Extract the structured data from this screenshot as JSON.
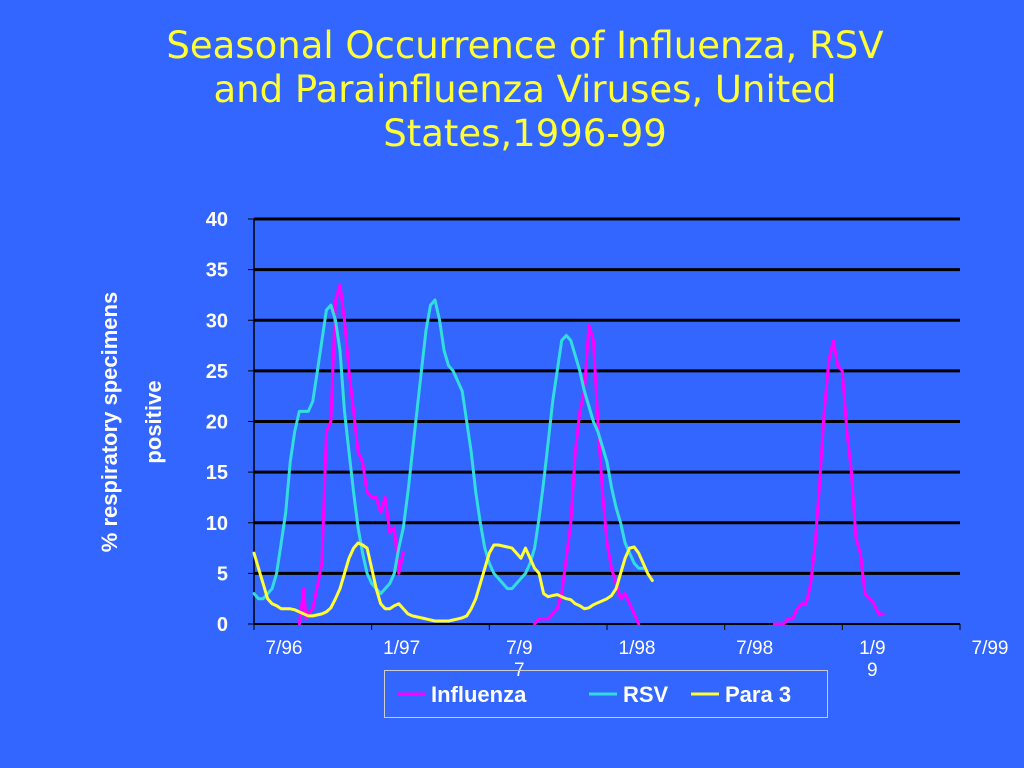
{
  "title_lines": [
    "Seasonal Occurrence of Influenza,  RSV",
    "and Parainfluenza Viruses, United",
    "States,1996-99"
  ],
  "chart_data": {
    "type": "line",
    "title": "Seasonal Occurrence of Influenza,  RSV and Parainfluenza Viruses, United States,1996-99",
    "ylabel_lines": [
      "% respiratory specimens",
      "positive"
    ],
    "xlabel": "",
    "ylim": [
      0,
      40
    ],
    "y_ticks": [
      "0",
      "5",
      "10",
      "15",
      "20",
      "25",
      "30",
      "35",
      "40"
    ],
    "x_tick_labels": [
      {
        "lines": [
          "7/96"
        ],
        "week": 0
      },
      {
        "lines": [
          "1/97"
        ],
        "week": 26
      },
      {
        "lines": [
          "7/9",
          "7"
        ],
        "week": 52
      },
      {
        "lines": [
          "1/98"
        ],
        "week": 78
      },
      {
        "lines": [
          "7/98"
        ],
        "week": 104
      },
      {
        "lines": [
          "1/9",
          "9"
        ],
        "week": 130
      },
      {
        "lines": [
          "7/99"
        ],
        "week": 156
      }
    ],
    "x_unit": "weeks from 7/96",
    "grid": true,
    "legend_position": "bottom",
    "colors": {
      "Influenza": "#ff00ff",
      "RSV": "#33dddd",
      "Para 3": "#ffff33",
      "background": "#3366ff",
      "title": "#ffff33"
    },
    "series": [
      {
        "name": "Influenza",
        "color": "#ff00ff",
        "points": [
          [
            10,
            0
          ],
          [
            11,
            3.5
          ],
          [
            11.5,
            0.5
          ],
          [
            12,
            1
          ],
          [
            13,
            1.5
          ],
          [
            15,
            6
          ],
          [
            16,
            19
          ],
          [
            17,
            20
          ],
          [
            18,
            32
          ],
          [
            19,
            33.5
          ],
          [
            20,
            30
          ],
          [
            21,
            25
          ],
          [
            22,
            21
          ],
          [
            23,
            17
          ],
          [
            24,
            16
          ],
          [
            25,
            13
          ],
          [
            26,
            12.5
          ],
          [
            27,
            12.5
          ],
          [
            28,
            11
          ],
          [
            29,
            12.5
          ],
          [
            30,
            9
          ],
          [
            31,
            9.5
          ],
          [
            32,
            5
          ],
          [
            33,
            7
          ]
        ]
      },
      {
        "name": "Influenza",
        "color": "#ff00ff",
        "points": [
          [
            62,
            0
          ],
          [
            63,
            0.5
          ],
          [
            65,
            0.5
          ],
          [
            67,
            1.5
          ],
          [
            68,
            3
          ],
          [
            70,
            10
          ],
          [
            71,
            17
          ],
          [
            72,
            21
          ],
          [
            73,
            23
          ],
          [
            74,
            29.5
          ],
          [
            75,
            28
          ],
          [
            76,
            20
          ],
          [
            77,
            13
          ],
          [
            78,
            8
          ],
          [
            79,
            5.5
          ],
          [
            80,
            4
          ],
          [
            81,
            2.5
          ],
          [
            82,
            3
          ],
          [
            83,
            2
          ],
          [
            84,
            1
          ],
          [
            85,
            0
          ]
        ]
      },
      {
        "name": "Influenza",
        "color": "#ff00ff",
        "points": [
          [
            115,
            0
          ],
          [
            117,
            0
          ],
          [
            118,
            0.5
          ],
          [
            119,
            0.5
          ],
          [
            120,
            1.5
          ],
          [
            121,
            2
          ],
          [
            122,
            2
          ],
          [
            123,
            4
          ],
          [
            124,
            8
          ],
          [
            125,
            14
          ],
          [
            126,
            21
          ],
          [
            127,
            26
          ],
          [
            128,
            28
          ],
          [
            129,
            25.5
          ],
          [
            130,
            25
          ],
          [
            131,
            19
          ],
          [
            132,
            15
          ],
          [
            133,
            8.5
          ],
          [
            134,
            7
          ],
          [
            135,
            3
          ],
          [
            136,
            2.5
          ],
          [
            137,
            2
          ],
          [
            138,
            1
          ],
          [
            139,
            1
          ]
        ]
      },
      {
        "name": "RSV",
        "color": "#33dddd",
        "points": [
          [
            0,
            3
          ],
          [
            1,
            2.5
          ],
          [
            2,
            2.5
          ],
          [
            3,
            3
          ],
          [
            4,
            3.5
          ],
          [
            5,
            5
          ],
          [
            6,
            8
          ],
          [
            7,
            11
          ],
          [
            8,
            16
          ],
          [
            9,
            19
          ],
          [
            10,
            21
          ],
          [
            11,
            21
          ],
          [
            12,
            21
          ],
          [
            13,
            22
          ],
          [
            14,
            25
          ],
          [
            15,
            28
          ],
          [
            16,
            31
          ],
          [
            17,
            31.5
          ],
          [
            18,
            30
          ],
          [
            19,
            27
          ],
          [
            20,
            21
          ],
          [
            21,
            17
          ],
          [
            22,
            13
          ],
          [
            23,
            9.5
          ],
          [
            24,
            7
          ],
          [
            25,
            5
          ],
          [
            26,
            4
          ],
          [
            27,
            3.5
          ],
          [
            28,
            3
          ],
          [
            29,
            3.5
          ],
          [
            30,
            4
          ],
          [
            31,
            5
          ],
          [
            32,
            7.5
          ],
          [
            33,
            9.5
          ],
          [
            34,
            13
          ],
          [
            35,
            17
          ],
          [
            36,
            21
          ],
          [
            37,
            25
          ],
          [
            38,
            29
          ],
          [
            39,
            31.5
          ],
          [
            40,
            32
          ],
          [
            41,
            30
          ],
          [
            42,
            27
          ],
          [
            43,
            25.5
          ],
          [
            44,
            25
          ],
          [
            45,
            24
          ],
          [
            46,
            23
          ],
          [
            47,
            20
          ],
          [
            48,
            17
          ],
          [
            49,
            13
          ],
          [
            50,
            10
          ],
          [
            51,
            7.5
          ],
          [
            52,
            6
          ],
          [
            53,
            5
          ],
          [
            54,
            4.5
          ],
          [
            55,
            4
          ],
          [
            56,
            3.5
          ],
          [
            57,
            3.5
          ],
          [
            58,
            4
          ],
          [
            59,
            4.5
          ],
          [
            60,
            5
          ],
          [
            61,
            6
          ],
          [
            62,
            7.5
          ],
          [
            63,
            10.5
          ],
          [
            64,
            14
          ],
          [
            65,
            18
          ],
          [
            66,
            22
          ],
          [
            67,
            25
          ],
          [
            68,
            28
          ],
          [
            69,
            28.5
          ],
          [
            70,
            28
          ],
          [
            71,
            26.5
          ],
          [
            72,
            25
          ],
          [
            73,
            23
          ],
          [
            74,
            21.5
          ],
          [
            75,
            20
          ],
          [
            76,
            19
          ],
          [
            77,
            17.5
          ],
          [
            78,
            16
          ],
          [
            79,
            13.5
          ],
          [
            80,
            11.5
          ],
          [
            81,
            10
          ],
          [
            82,
            8
          ],
          [
            83,
            7
          ],
          [
            84,
            6
          ],
          [
            85,
            5.5
          ],
          [
            86,
            5.5
          ]
        ]
      },
      {
        "name": "Para 3",
        "color": "#ffff33",
        "points": [
          [
            0,
            7
          ],
          [
            1,
            5.5
          ],
          [
            2,
            4
          ],
          [
            3,
            2.5
          ],
          [
            4,
            2
          ],
          [
            5,
            1.8
          ],
          [
            6,
            1.5
          ],
          [
            7,
            1.5
          ],
          [
            8,
            1.5
          ],
          [
            9,
            1.4
          ],
          [
            10,
            1.2
          ],
          [
            11,
            1
          ],
          [
            12,
            0.8
          ],
          [
            13,
            0.8
          ],
          [
            14,
            0.9
          ],
          [
            15,
            1
          ],
          [
            16,
            1.2
          ],
          [
            17,
            1.6
          ],
          [
            18,
            2.5
          ],
          [
            19,
            3.5
          ],
          [
            20,
            5
          ],
          [
            21,
            6.5
          ],
          [
            22,
            7.5
          ],
          [
            23,
            8
          ],
          [
            24,
            7.8
          ],
          [
            25,
            7.5
          ],
          [
            26,
            5.5
          ],
          [
            27,
            3.5
          ],
          [
            28,
            2
          ],
          [
            29,
            1.5
          ],
          [
            30,
            1.5
          ],
          [
            31,
            1.8
          ],
          [
            32,
            2
          ],
          [
            33,
            1.5
          ],
          [
            34,
            1
          ],
          [
            35,
            0.8
          ],
          [
            36,
            0.7
          ],
          [
            37,
            0.6
          ],
          [
            38,
            0.5
          ],
          [
            39,
            0.4
          ],
          [
            40,
            0.3
          ],
          [
            41,
            0.3
          ],
          [
            42,
            0.3
          ],
          [
            43,
            0.3
          ],
          [
            44,
            0.4
          ],
          [
            45,
            0.5
          ],
          [
            46,
            0.6
          ],
          [
            47,
            0.8
          ],
          [
            48,
            1.5
          ],
          [
            49,
            2.5
          ],
          [
            50,
            4
          ],
          [
            51,
            5.5
          ],
          [
            52,
            7
          ],
          [
            53,
            7.8
          ],
          [
            54,
            7.8
          ],
          [
            55,
            7.7
          ],
          [
            56,
            7.6
          ],
          [
            57,
            7.5
          ],
          [
            58,
            7
          ],
          [
            59,
            6.5
          ],
          [
            60,
            7.5
          ],
          [
            61,
            6.5
          ],
          [
            62,
            5.5
          ],
          [
            63,
            5
          ],
          [
            64,
            3
          ],
          [
            65,
            2.7
          ],
          [
            66,
            2.8
          ],
          [
            67,
            2.9
          ],
          [
            68,
            2.7
          ],
          [
            69,
            2.5
          ],
          [
            70,
            2.4
          ],
          [
            71,
            2
          ],
          [
            72,
            1.8
          ],
          [
            73,
            1.5
          ],
          [
            74,
            1.6
          ],
          [
            75,
            1.9
          ],
          [
            76,
            2.1
          ],
          [
            77,
            2.3
          ],
          [
            78,
            2.5
          ],
          [
            79,
            2.8
          ],
          [
            80,
            3.5
          ],
          [
            81,
            5
          ],
          [
            82,
            6.5
          ],
          [
            83,
            7.5
          ],
          [
            84,
            7.6
          ],
          [
            85,
            7
          ],
          [
            86,
            6
          ],
          [
            87,
            5
          ],
          [
            88,
            4.3
          ]
        ]
      }
    ]
  },
  "legend": {
    "items": [
      {
        "label": "Influenza",
        "color": "#ff00ff"
      },
      {
        "label": "RSV",
        "color": "#33dddd"
      },
      {
        "label": "Para 3",
        "color": "#ffff33"
      }
    ]
  }
}
